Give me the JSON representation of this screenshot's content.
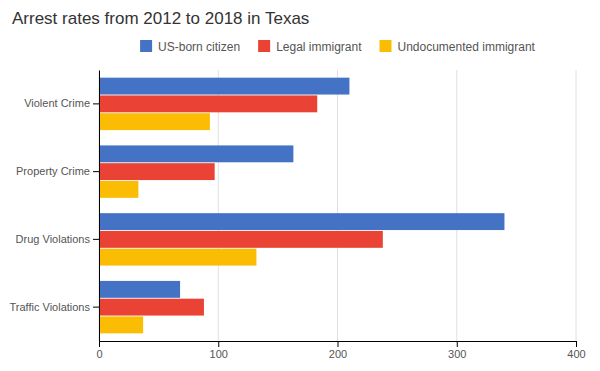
{
  "chart_data": {
    "type": "bar",
    "orientation": "horizontal",
    "title": "Arrest rates from 2012 to 2018 in Texas",
    "categories": [
      "Violent Crime",
      "Property Crime",
      "Drug Violations",
      "Traffic Violations"
    ],
    "series": [
      {
        "name": "US-born citizen",
        "color": "#4472C4",
        "values": [
          210,
          163,
          340,
          68
        ]
      },
      {
        "name": "Legal immigrant",
        "color": "#EA4335",
        "values": [
          183,
          97,
          238,
          88
        ]
      },
      {
        "name": "Undocumented immigrant",
        "color": "#FBBC04",
        "values": [
          93,
          33,
          132,
          37
        ]
      }
    ],
    "xlim": [
      0,
      400
    ],
    "xticks": [
      0,
      100,
      200,
      300,
      400
    ],
    "grid": true,
    "legend": "top"
  }
}
